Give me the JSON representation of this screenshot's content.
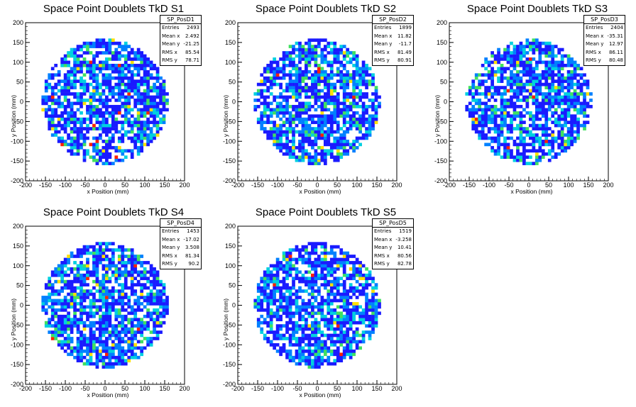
{
  "chart_data": [
    {
      "type": "heatmap",
      "title": "Space Point Doublets TkD S1",
      "xlabel": "x Position (mm)",
      "ylabel": "y Position (mm)",
      "xlim": [
        -200,
        200
      ],
      "ylim": [
        -200,
        200
      ],
      "x_ticks": [
        "-200",
        "-150",
        "-100",
        "-50",
        "0",
        "50",
        "100",
        "150",
        "200"
      ],
      "y_ticks": [
        "-200",
        "-150",
        "-100",
        "-50",
        "0",
        "50",
        "100",
        "150",
        "200"
      ],
      "stats": {
        "name": "SP_PosD1",
        "entries": "2493",
        "mean_x": "2.492",
        "mean_y": "-21.25",
        "rms_x": "85.54",
        "rms_y": "78.71"
      }
    },
    {
      "type": "heatmap",
      "title": "Space Point Doublets TkD S2",
      "xlabel": "x Position (mm)",
      "ylabel": "y Position (mm)",
      "xlim": [
        -200,
        200
      ],
      "ylim": [
        -200,
        200
      ],
      "x_ticks": [
        "-200",
        "-150",
        "-100",
        "-50",
        "0",
        "50",
        "100",
        "150",
        "200"
      ],
      "y_ticks": [
        "-200",
        "-150",
        "-100",
        "-50",
        "0",
        "50",
        "100",
        "150",
        "200"
      ],
      "stats": {
        "name": "SP_PosD2",
        "entries": "1899",
        "mean_x": "11.82",
        "mean_y": "-11.7",
        "rms_x": "81.49",
        "rms_y": "80.91"
      }
    },
    {
      "type": "heatmap",
      "title": "Space Point Doublets TkD S3",
      "xlabel": "x Position (mm)",
      "ylabel": "y Position (mm)",
      "xlim": [
        -200,
        200
      ],
      "ylim": [
        -200,
        200
      ],
      "x_ticks": [
        "-200",
        "-150",
        "-100",
        "-50",
        "0",
        "50",
        "100",
        "150",
        "200"
      ],
      "y_ticks": [
        "-200",
        "-150",
        "-100",
        "-50",
        "0",
        "50",
        "100",
        "150",
        "200"
      ],
      "stats": {
        "name": "SP_PosD3",
        "entries": "2404",
        "mean_x": "-35.31",
        "mean_y": "12.97",
        "rms_x": "86.11",
        "rms_y": "80.48"
      }
    },
    {
      "type": "heatmap",
      "title": "Space Point Doublets TkD S4",
      "xlabel": "x Position (mm)",
      "ylabel": "y Position (mm)",
      "xlim": [
        -200,
        200
      ],
      "ylim": [
        -200,
        200
      ],
      "x_ticks": [
        "-200",
        "-150",
        "-100",
        "-50",
        "0",
        "50",
        "100",
        "150",
        "200"
      ],
      "y_ticks": [
        "-200",
        "-150",
        "-100",
        "-50",
        "0",
        "50",
        "100",
        "150",
        "200"
      ],
      "stats": {
        "name": "SP_PosD4",
        "entries": "1453",
        "mean_x": "-17.02",
        "mean_y": "3.508",
        "rms_x": "81.34",
        "rms_y": "90.2"
      }
    },
    {
      "type": "heatmap",
      "title": "Space Point Doublets TkD S5",
      "xlabel": "x Position (mm)",
      "ylabel": "y Position (mm)",
      "xlim": [
        -200,
        200
      ],
      "ylim": [
        -200,
        200
      ],
      "x_ticks": [
        "-200",
        "-150",
        "-100",
        "-50",
        "0",
        "50",
        "100",
        "150",
        "200"
      ],
      "y_ticks": [
        "-200",
        "-150",
        "-100",
        "-50",
        "0",
        "50",
        "100",
        "150",
        "200"
      ],
      "stats": {
        "name": "SP_PosD5",
        "entries": "1519",
        "mean_x": "-3.258",
        "mean_y": "10.41",
        "rms_x": "80.56",
        "rms_y": "82.78"
      }
    }
  ],
  "stats_labels": {
    "entries": "Entries",
    "mean_x": "Mean x",
    "mean_y": "Mean y",
    "rms_x": "RMS x",
    "rms_y": "RMS y"
  },
  "colors": {
    "low": "#1a1aff",
    "mid_low": "#0080ff",
    "mid": "#00d0e0",
    "mid_high": "#40e060",
    "high": "#ffe000",
    "max": "#ff2000"
  }
}
